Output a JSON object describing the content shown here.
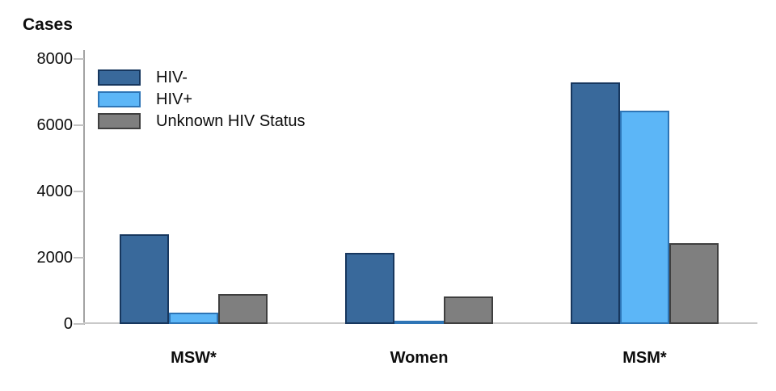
{
  "chart_data": {
    "type": "bar",
    "ylabel": "Cases",
    "categories": [
      "MSW*",
      "Women",
      "MSM*"
    ],
    "series": [
      {
        "name": "HIV-",
        "color": "#39699B",
        "border_color": "#17375E",
        "values": [
          2700,
          2150,
          7300
        ]
      },
      {
        "name": "HIV+",
        "color": "#5CB6F7",
        "border_color": "#2E75B6",
        "values": [
          350,
          100,
          6450
        ]
      },
      {
        "name": "Unknown HIV Status",
        "color": "#7F7F7F",
        "border_color": "#3F3F3F",
        "values": [
          900,
          830,
          2430
        ]
      }
    ],
    "yticks": [
      0,
      2000,
      4000,
      6000,
      8000
    ],
    "ylim": [
      0,
      8000
    ],
    "grid": false,
    "legend_position": "top-left"
  }
}
